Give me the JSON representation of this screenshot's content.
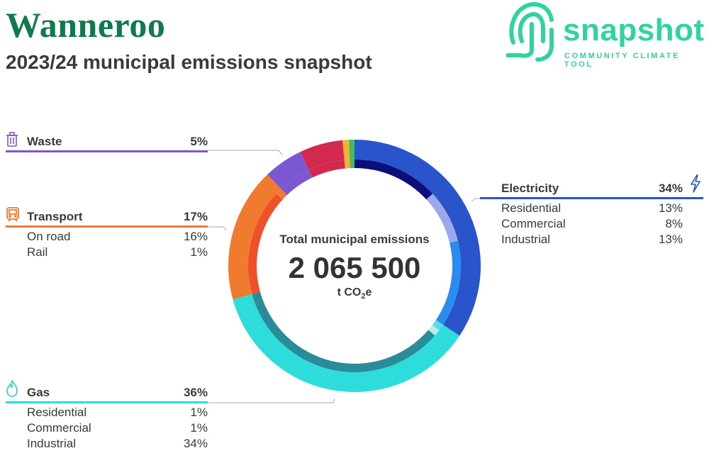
{
  "header": {
    "title": "Wanneroo",
    "subtitle": "2023/24 municipal emissions snapshot"
  },
  "logo": {
    "word": "snapshot",
    "tagline": "COMMUNITY CLIMATE TOOL"
  },
  "center": {
    "title": "Total municipal emissions",
    "total": "2 065 500",
    "unit_prefix": "t CO",
    "unit_sub": "2",
    "unit_suffix": "e"
  },
  "sectors": {
    "waste": {
      "label": "Waste",
      "pct": "5%",
      "color": "#7b57d1",
      "icon": "trash-icon"
    },
    "transport": {
      "label": "Transport",
      "pct": "17%",
      "color": "#f07a2e",
      "icon": "train-icon",
      "items": [
        {
          "label": "On road",
          "pct": "16%"
        },
        {
          "label": "Rail",
          "pct": "1%"
        }
      ]
    },
    "electricity": {
      "label": "Electricity",
      "pct": "34%",
      "color": "#2a54c9",
      "icon": "lightning-icon",
      "items": [
        {
          "label": "Residential",
          "pct": "13%"
        },
        {
          "label": "Commercial",
          "pct": "8%"
        },
        {
          "label": "Industrial",
          "pct": "13%"
        }
      ]
    },
    "gas": {
      "label": "Gas",
      "pct": "36%",
      "color": "#2edcdc",
      "icon": "flame-icon",
      "items": [
        {
          "label": "Residential",
          "pct": "1%"
        },
        {
          "label": "Commercial",
          "pct": "1%"
        },
        {
          "label": "Industrial",
          "pct": "34%"
        }
      ]
    }
  },
  "chart_data": {
    "type": "pie",
    "total_t_co2e": 2065500,
    "series": [
      {
        "name": "Electricity",
        "value": 34,
        "color": "#2a54c9",
        "sub": [
          {
            "name": "Residential",
            "value": 13,
            "color": "#0a0f7a"
          },
          {
            "name": "Commercial",
            "value": 8,
            "color": "#9aa8ee"
          },
          {
            "name": "Industrial",
            "value": 13,
            "color": "#2a8cf0"
          }
        ]
      },
      {
        "name": "Gas",
        "value": 36,
        "color": "#2edcdc",
        "sub": [
          {
            "name": "Residential",
            "value": 1,
            "color": "#5fd8e6"
          },
          {
            "name": "Commercial",
            "value": 1,
            "color": "#b4f0ee"
          },
          {
            "name": "Industrial",
            "value": 34,
            "color": "#2a8c98"
          }
        ]
      },
      {
        "name": "Transport",
        "value": 17,
        "color": "#f07a2e",
        "sub": [
          {
            "name": "On road",
            "value": 16,
            "color": "#f05028"
          },
          {
            "name": "Rail",
            "value": 1,
            "color": "#f07a2e"
          }
        ]
      },
      {
        "name": "Waste",
        "value": 5,
        "color": "#7b57d1",
        "sub": []
      },
      {
        "name": "",
        "value": 5.5,
        "color": "#d2294e",
        "sub": []
      },
      {
        "name": "",
        "value": 0.8,
        "color": "#f5b133",
        "sub": []
      },
      {
        "name": "",
        "value": 0.7,
        "color": "#3fbf5c",
        "sub": []
      }
    ]
  }
}
